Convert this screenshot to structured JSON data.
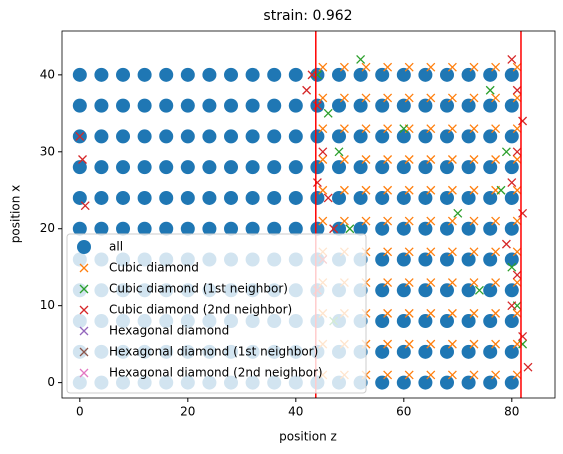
{
  "chart_data": {
    "type": "scatter",
    "title": "strain: 0.962",
    "xlabel": "position z",
    "ylabel": "position x",
    "xlim": [
      -3.3,
      88
    ],
    "ylim": [
      -2,
      45.7
    ],
    "xticks": [
      0,
      20,
      40,
      60,
      80
    ],
    "yticks": [
      0,
      10,
      20,
      30,
      40
    ],
    "legend_loc": "lower left",
    "vlines": [
      43.7,
      81.7
    ],
    "vline_color": "#ff0000",
    "series": [
      {
        "name": "all",
        "color": "#1f77b4",
        "marker": "o",
        "x": [
          0,
          0,
          0,
          0,
          0,
          0,
          0,
          0,
          0,
          0,
          0,
          4,
          4,
          4,
          4,
          4,
          4,
          4,
          4,
          4,
          4,
          4,
          8,
          8,
          8,
          8,
          8,
          8,
          8,
          8,
          8,
          8,
          8,
          12,
          12,
          12,
          12,
          12,
          12,
          12,
          12,
          12,
          12,
          12,
          16,
          16,
          16,
          16,
          16,
          16,
          16,
          16,
          16,
          16,
          16,
          20,
          20,
          20,
          20,
          20,
          20,
          20,
          20,
          20,
          20,
          20,
          24,
          24,
          24,
          24,
          24,
          24,
          24,
          24,
          24,
          24,
          24,
          28,
          28,
          28,
          28,
          28,
          28,
          28,
          28,
          28,
          28,
          28,
          32,
          32,
          32,
          32,
          32,
          32,
          32,
          32,
          32,
          32,
          32,
          36,
          36,
          36,
          36,
          36,
          36,
          36,
          36,
          36,
          36,
          36,
          40,
          40,
          40,
          40,
          40,
          40,
          40,
          40,
          40,
          40,
          40,
          44,
          44,
          44,
          44,
          44,
          44,
          44,
          44,
          44,
          44,
          44,
          48,
          48,
          48,
          48,
          48,
          48,
          48,
          48,
          48,
          48,
          48,
          52,
          52,
          52,
          52,
          52,
          52,
          52,
          52,
          52,
          52,
          52,
          56,
          56,
          56,
          56,
          56,
          56,
          56,
          56,
          56,
          56,
          56,
          60,
          60,
          60,
          60,
          60,
          60,
          60,
          60,
          60,
          60,
          60,
          64,
          64,
          64,
          64,
          64,
          64,
          64,
          64,
          64,
          64,
          64,
          68,
          68,
          68,
          68,
          68,
          68,
          68,
          68,
          68,
          68,
          68,
          72,
          72,
          72,
          72,
          72,
          72,
          72,
          72,
          72,
          72,
          72,
          76,
          76,
          76,
          76,
          76,
          76,
          76,
          76,
          76,
          76,
          76,
          80,
          80,
          80,
          80,
          80,
          80,
          80,
          80,
          80,
          80,
          80
        ],
        "values": [
          0,
          4,
          8,
          12,
          16,
          20,
          24,
          28,
          32,
          36,
          40,
          0,
          4,
          8,
          12,
          16,
          20,
          24,
          28,
          32,
          36,
          40,
          0,
          4,
          8,
          12,
          16,
          20,
          24,
          28,
          32,
          36,
          40,
          0,
          4,
          8,
          12,
          16,
          20,
          24,
          28,
          32,
          36,
          40,
          0,
          4,
          8,
          12,
          16,
          20,
          24,
          28,
          32,
          36,
          40,
          0,
          4,
          8,
          12,
          16,
          20,
          24,
          28,
          32,
          36,
          40,
          0,
          4,
          8,
          12,
          16,
          20,
          24,
          28,
          32,
          36,
          40,
          0,
          4,
          8,
          12,
          16,
          20,
          24,
          28,
          32,
          36,
          40,
          0,
          4,
          8,
          12,
          16,
          20,
          24,
          28,
          32,
          36,
          40,
          0,
          4,
          8,
          12,
          16,
          20,
          24,
          28,
          32,
          36,
          40,
          0,
          4,
          8,
          12,
          16,
          20,
          24,
          28,
          32,
          36,
          40,
          0,
          4,
          8,
          12,
          16,
          20,
          24,
          28,
          32,
          36,
          40,
          0,
          4,
          8,
          12,
          16,
          20,
          24,
          28,
          32,
          36,
          40,
          0,
          4,
          8,
          12,
          16,
          20,
          24,
          28,
          32,
          36,
          40,
          0,
          4,
          8,
          12,
          16,
          20,
          24,
          28,
          32,
          36,
          40,
          0,
          4,
          8,
          12,
          16,
          20,
          24,
          28,
          32,
          36,
          40,
          0,
          4,
          8,
          12,
          16,
          20,
          24,
          28,
          32,
          36,
          40,
          0,
          4,
          8,
          12,
          16,
          20,
          24,
          28,
          32,
          36,
          40,
          0,
          4,
          8,
          12,
          16,
          20,
          24,
          28,
          32,
          36,
          40,
          0,
          4,
          8,
          12,
          16,
          20,
          24,
          28,
          32,
          36,
          40,
          0,
          4,
          8,
          12,
          16,
          20,
          24,
          28,
          32,
          36,
          40
        ]
      },
      {
        "name": "Cubic diamond",
        "color": "#ff7f0e",
        "marker": "x",
        "x": [
          45,
          45,
          45,
          45,
          45,
          45,
          45,
          45,
          45,
          45,
          45,
          49,
          49,
          49,
          49,
          49,
          49,
          49,
          49,
          49,
          49,
          49,
          53,
          53,
          53,
          53,
          53,
          53,
          53,
          53,
          53,
          53,
          53,
          57,
          57,
          57,
          57,
          57,
          57,
          57,
          57,
          57,
          57,
          57,
          61,
          61,
          61,
          61,
          61,
          61,
          61,
          61,
          61,
          61,
          61,
          65,
          65,
          65,
          65,
          65,
          65,
          65,
          65,
          65,
          65,
          65,
          69,
          69,
          69,
          69,
          69,
          69,
          69,
          69,
          69,
          69,
          69,
          73,
          73,
          73,
          73,
          73,
          73,
          73,
          73,
          73,
          73,
          73,
          77,
          77,
          77,
          77,
          77,
          77,
          77,
          77,
          77,
          77,
          77,
          81,
          81,
          81,
          81,
          81,
          81,
          81,
          81,
          81,
          81,
          81
        ],
        "values": [
          1,
          5,
          9,
          13,
          17,
          21,
          25,
          29,
          33,
          37,
          41,
          1,
          5,
          9,
          13,
          17,
          21,
          25,
          29,
          33,
          37,
          41,
          1,
          5,
          9,
          13,
          17,
          21,
          25,
          29,
          33,
          37,
          41,
          1,
          5,
          9,
          13,
          17,
          21,
          25,
          29,
          33,
          37,
          41,
          1,
          5,
          9,
          13,
          17,
          21,
          25,
          29,
          33,
          37,
          41,
          1,
          5,
          9,
          13,
          17,
          21,
          25,
          29,
          33,
          37,
          41,
          1,
          5,
          9,
          13,
          17,
          21,
          25,
          29,
          33,
          37,
          41,
          1,
          5,
          9,
          13,
          17,
          21,
          25,
          29,
          33,
          37,
          41,
          1,
          5,
          9,
          13,
          17,
          21,
          25,
          29,
          33,
          37,
          41,
          1,
          5,
          9,
          13,
          17,
          21,
          25,
          29,
          33,
          37,
          41
        ]
      },
      {
        "name": "Cubic diamond (1st neighbor)",
        "color": "#2ca02c",
        "marker": "x",
        "x": [
          44,
          46,
          48,
          50,
          76,
          78,
          80,
          82,
          70,
          74,
          60,
          52,
          79,
          81,
          47
        ],
        "values": [
          40,
          35,
          30,
          20,
          38,
          25,
          15,
          5,
          22,
          12,
          33,
          42,
          30,
          10,
          8
        ]
      },
      {
        "name": "Cubic diamond (2nd neighbor)",
        "color": "#d62728",
        "marker": "x",
        "x": [
          0,
          0.5,
          1,
          43,
          44,
          45,
          44,
          46,
          42,
          47,
          80,
          81,
          82,
          81,
          80,
          82,
          79,
          81,
          80,
          82,
          83,
          45,
          44
        ],
        "values": [
          32,
          29,
          23,
          40,
          36,
          30,
          26,
          24,
          38,
          20,
          42,
          38,
          34,
          30,
          26,
          22,
          18,
          14,
          10,
          6,
          2,
          16,
          12
        ]
      },
      {
        "name": "Hexagonal diamond",
        "color": "#9467bd",
        "marker": "x",
        "x": [],
        "values": []
      },
      {
        "name": "Hexagonal diamond (1st neighbor)",
        "color": "#8c564b",
        "marker": "x",
        "x": [],
        "values": []
      },
      {
        "name": "Hexagonal diamond (2nd neighbor)",
        "color": "#e377c2",
        "marker": "x",
        "x": [],
        "values": []
      }
    ]
  }
}
